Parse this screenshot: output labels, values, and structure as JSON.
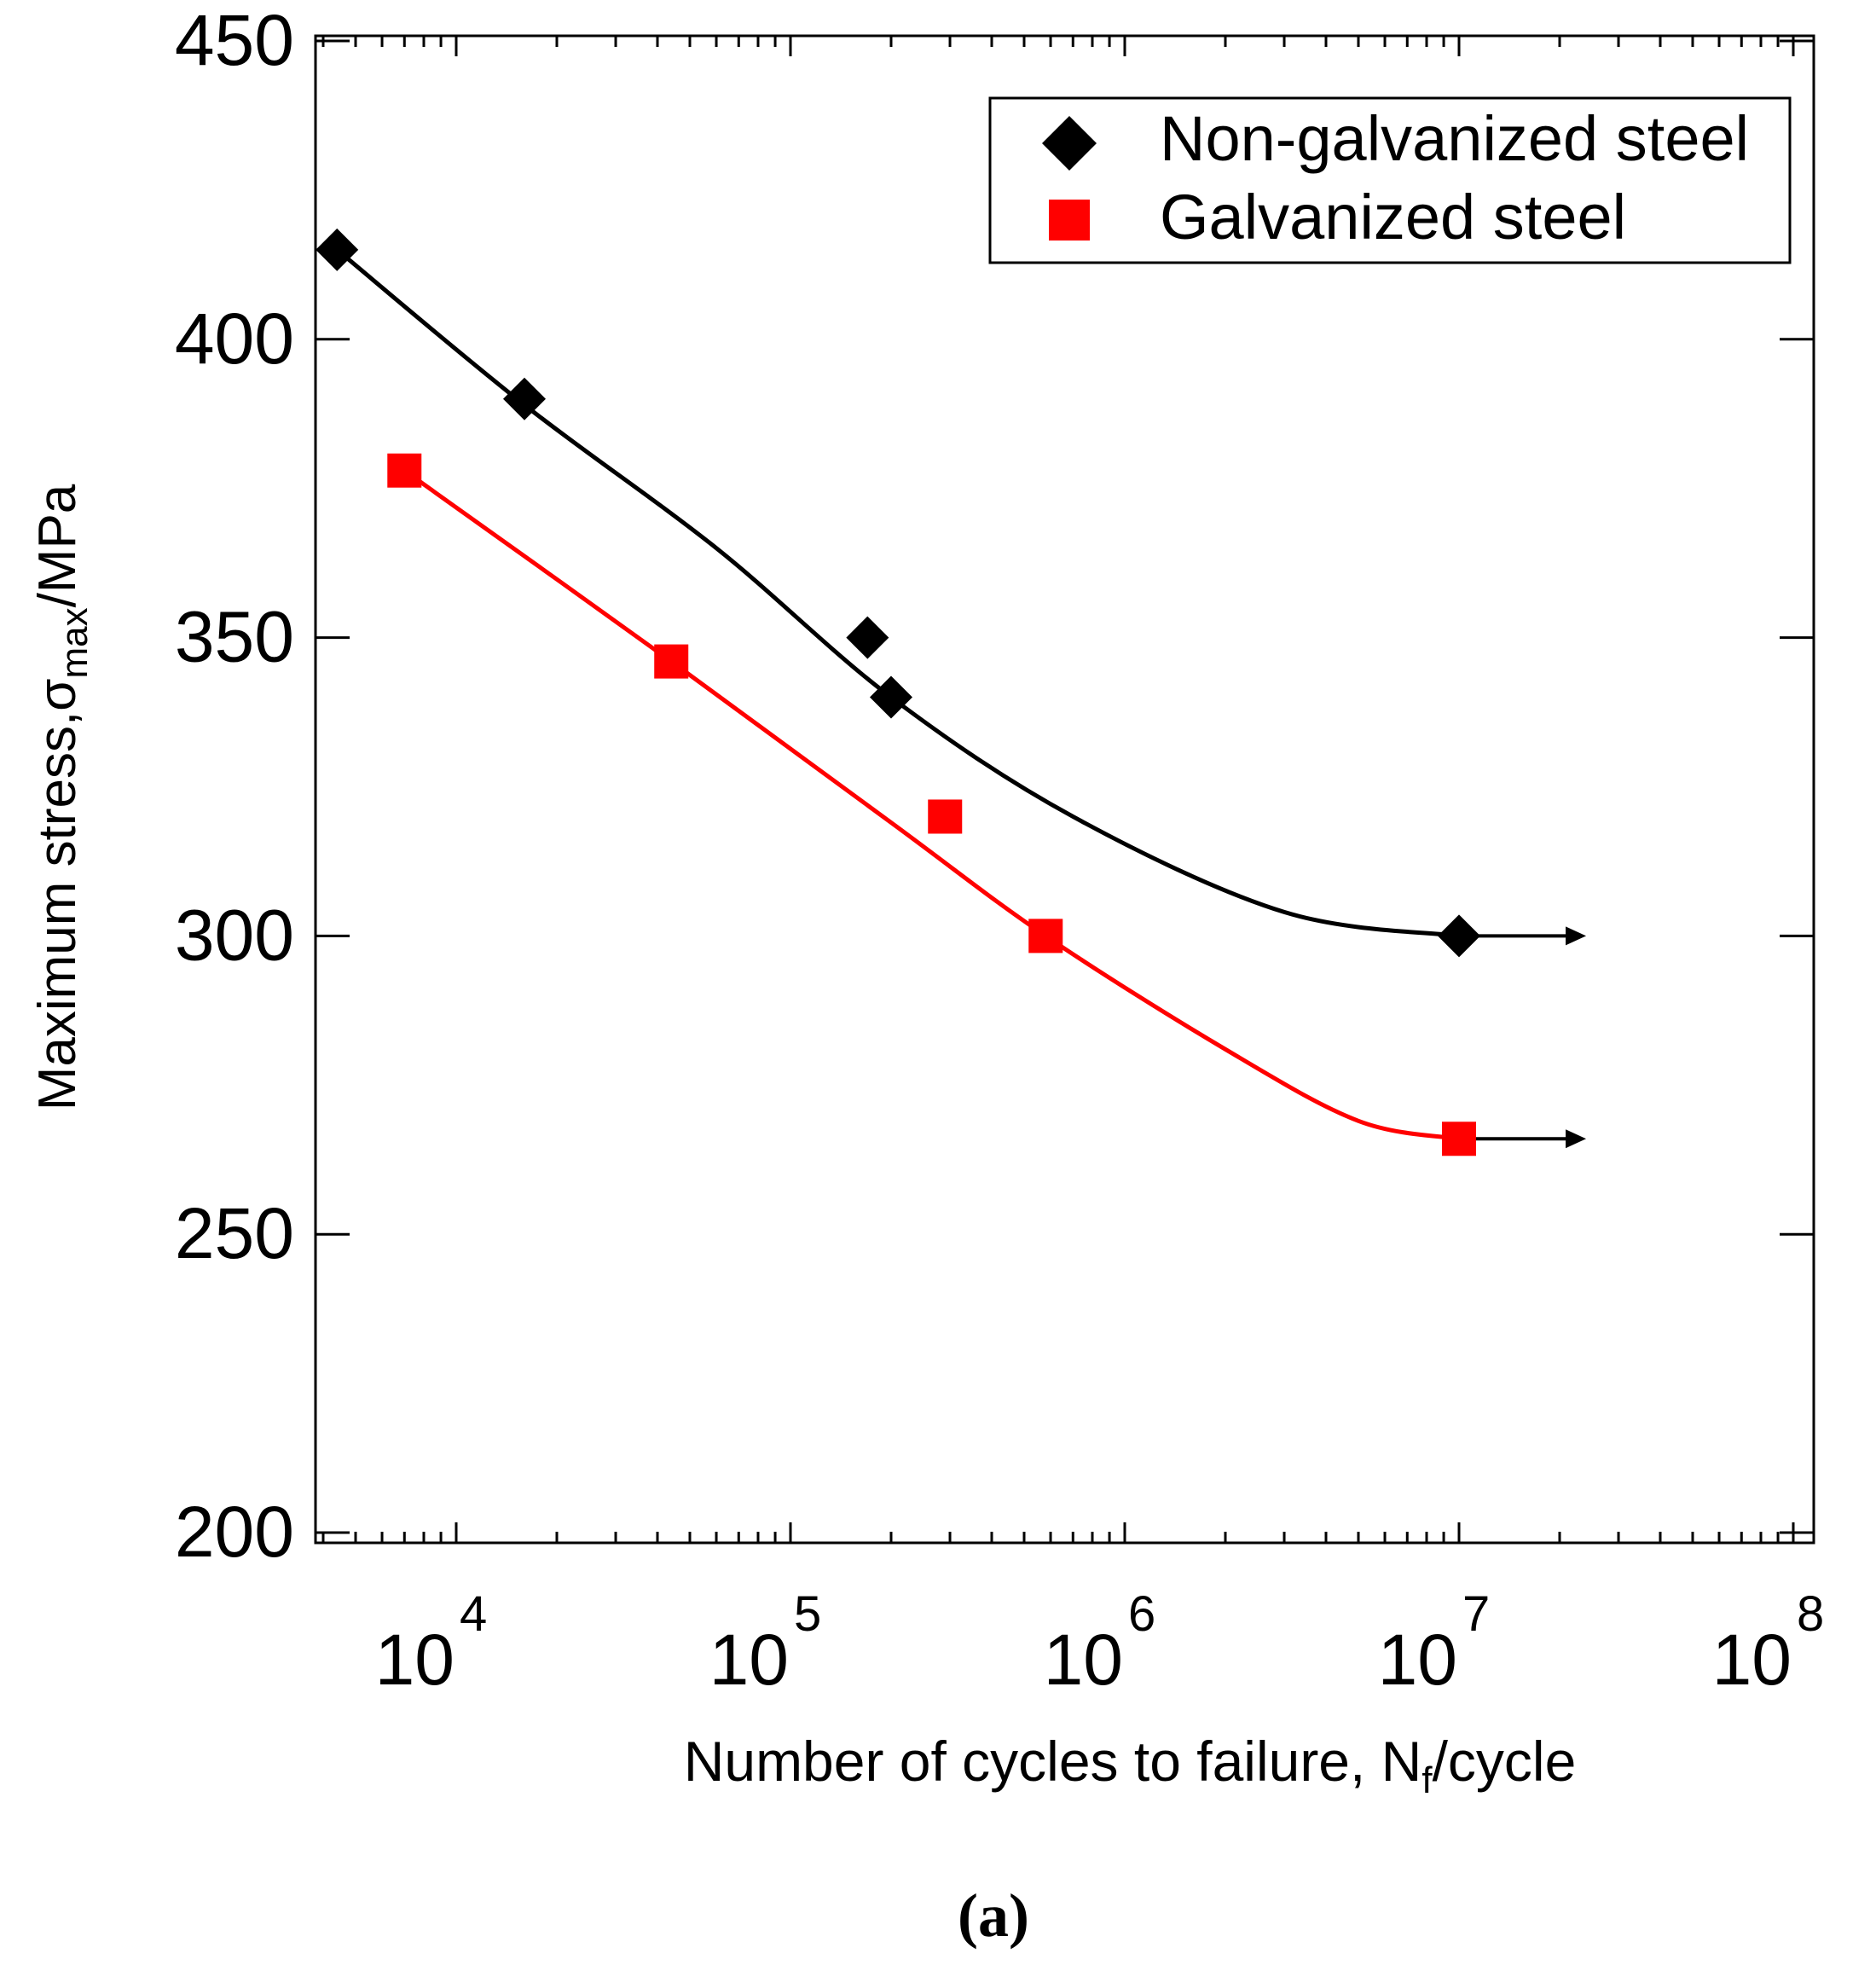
{
  "chart_data": {
    "type": "scatter",
    "panel_label": "(a)",
    "xlabel": {
      "main": "Number of cycles to failure, N",
      "sub": "f",
      "suffix": "/cycle"
    },
    "ylabel": {
      "main": "Maximum stress,σ",
      "sub": "max",
      "suffix": "/MPa"
    },
    "x_scale": "log",
    "xlim": [
      4000,
      130000000
    ],
    "ylim": [
      197,
      450
    ],
    "x_ticks": [
      {
        "base": "10",
        "exp": "4",
        "value": 10000
      },
      {
        "base": "10",
        "exp": "5",
        "value": 100000
      },
      {
        "base": "10",
        "exp": "6",
        "value": 1000000
      },
      {
        "base": "10",
        "exp": "7",
        "value": 10000000
      },
      {
        "base": "10",
        "exp": "8",
        "value": 100000000
      }
    ],
    "y_ticks": [
      "200",
      "250",
      "300",
      "350",
      "400",
      "450"
    ],
    "legend_position": "top-right",
    "series": [
      {
        "name": "Non-galvanized steel",
        "marker": "diamond",
        "color": "#000000",
        "points": [
          [
            4400,
            415
          ],
          [
            16000,
            390
          ],
          [
            170000,
            350
          ],
          [
            200000,
            340
          ],
          [
            10000000,
            300
          ]
        ],
        "fit_curve": [
          [
            4400,
            415
          ],
          [
            16000,
            389
          ],
          [
            60000,
            365
          ],
          [
            200000,
            340
          ],
          [
            700000,
            320
          ],
          [
            3000000,
            304
          ],
          [
            10000000,
            300
          ]
        ],
        "runout": {
          "from": 10000000,
          "to": 24000000,
          "value": 300
        }
      },
      {
        "name": "Galvanized steel",
        "marker": "square",
        "color": "#ff0000",
        "points": [
          [
            7000,
            378
          ],
          [
            44000,
            346
          ],
          [
            290000,
            320
          ],
          [
            580000,
            300
          ],
          [
            10000000,
            266
          ]
        ],
        "fit_curve": [
          [
            7000,
            378
          ],
          [
            44000,
            346
          ],
          [
            200000,
            319
          ],
          [
            580000,
            300
          ],
          [
            2000000,
            281
          ],
          [
            5000000,
            269
          ],
          [
            10000000,
            266
          ]
        ],
        "runout": {
          "from": 10000000,
          "to": 24000000,
          "value": 266
        }
      }
    ]
  },
  "colors": {
    "axis": "#000000",
    "black_series": "#000000",
    "red_series": "#ff0000"
  }
}
